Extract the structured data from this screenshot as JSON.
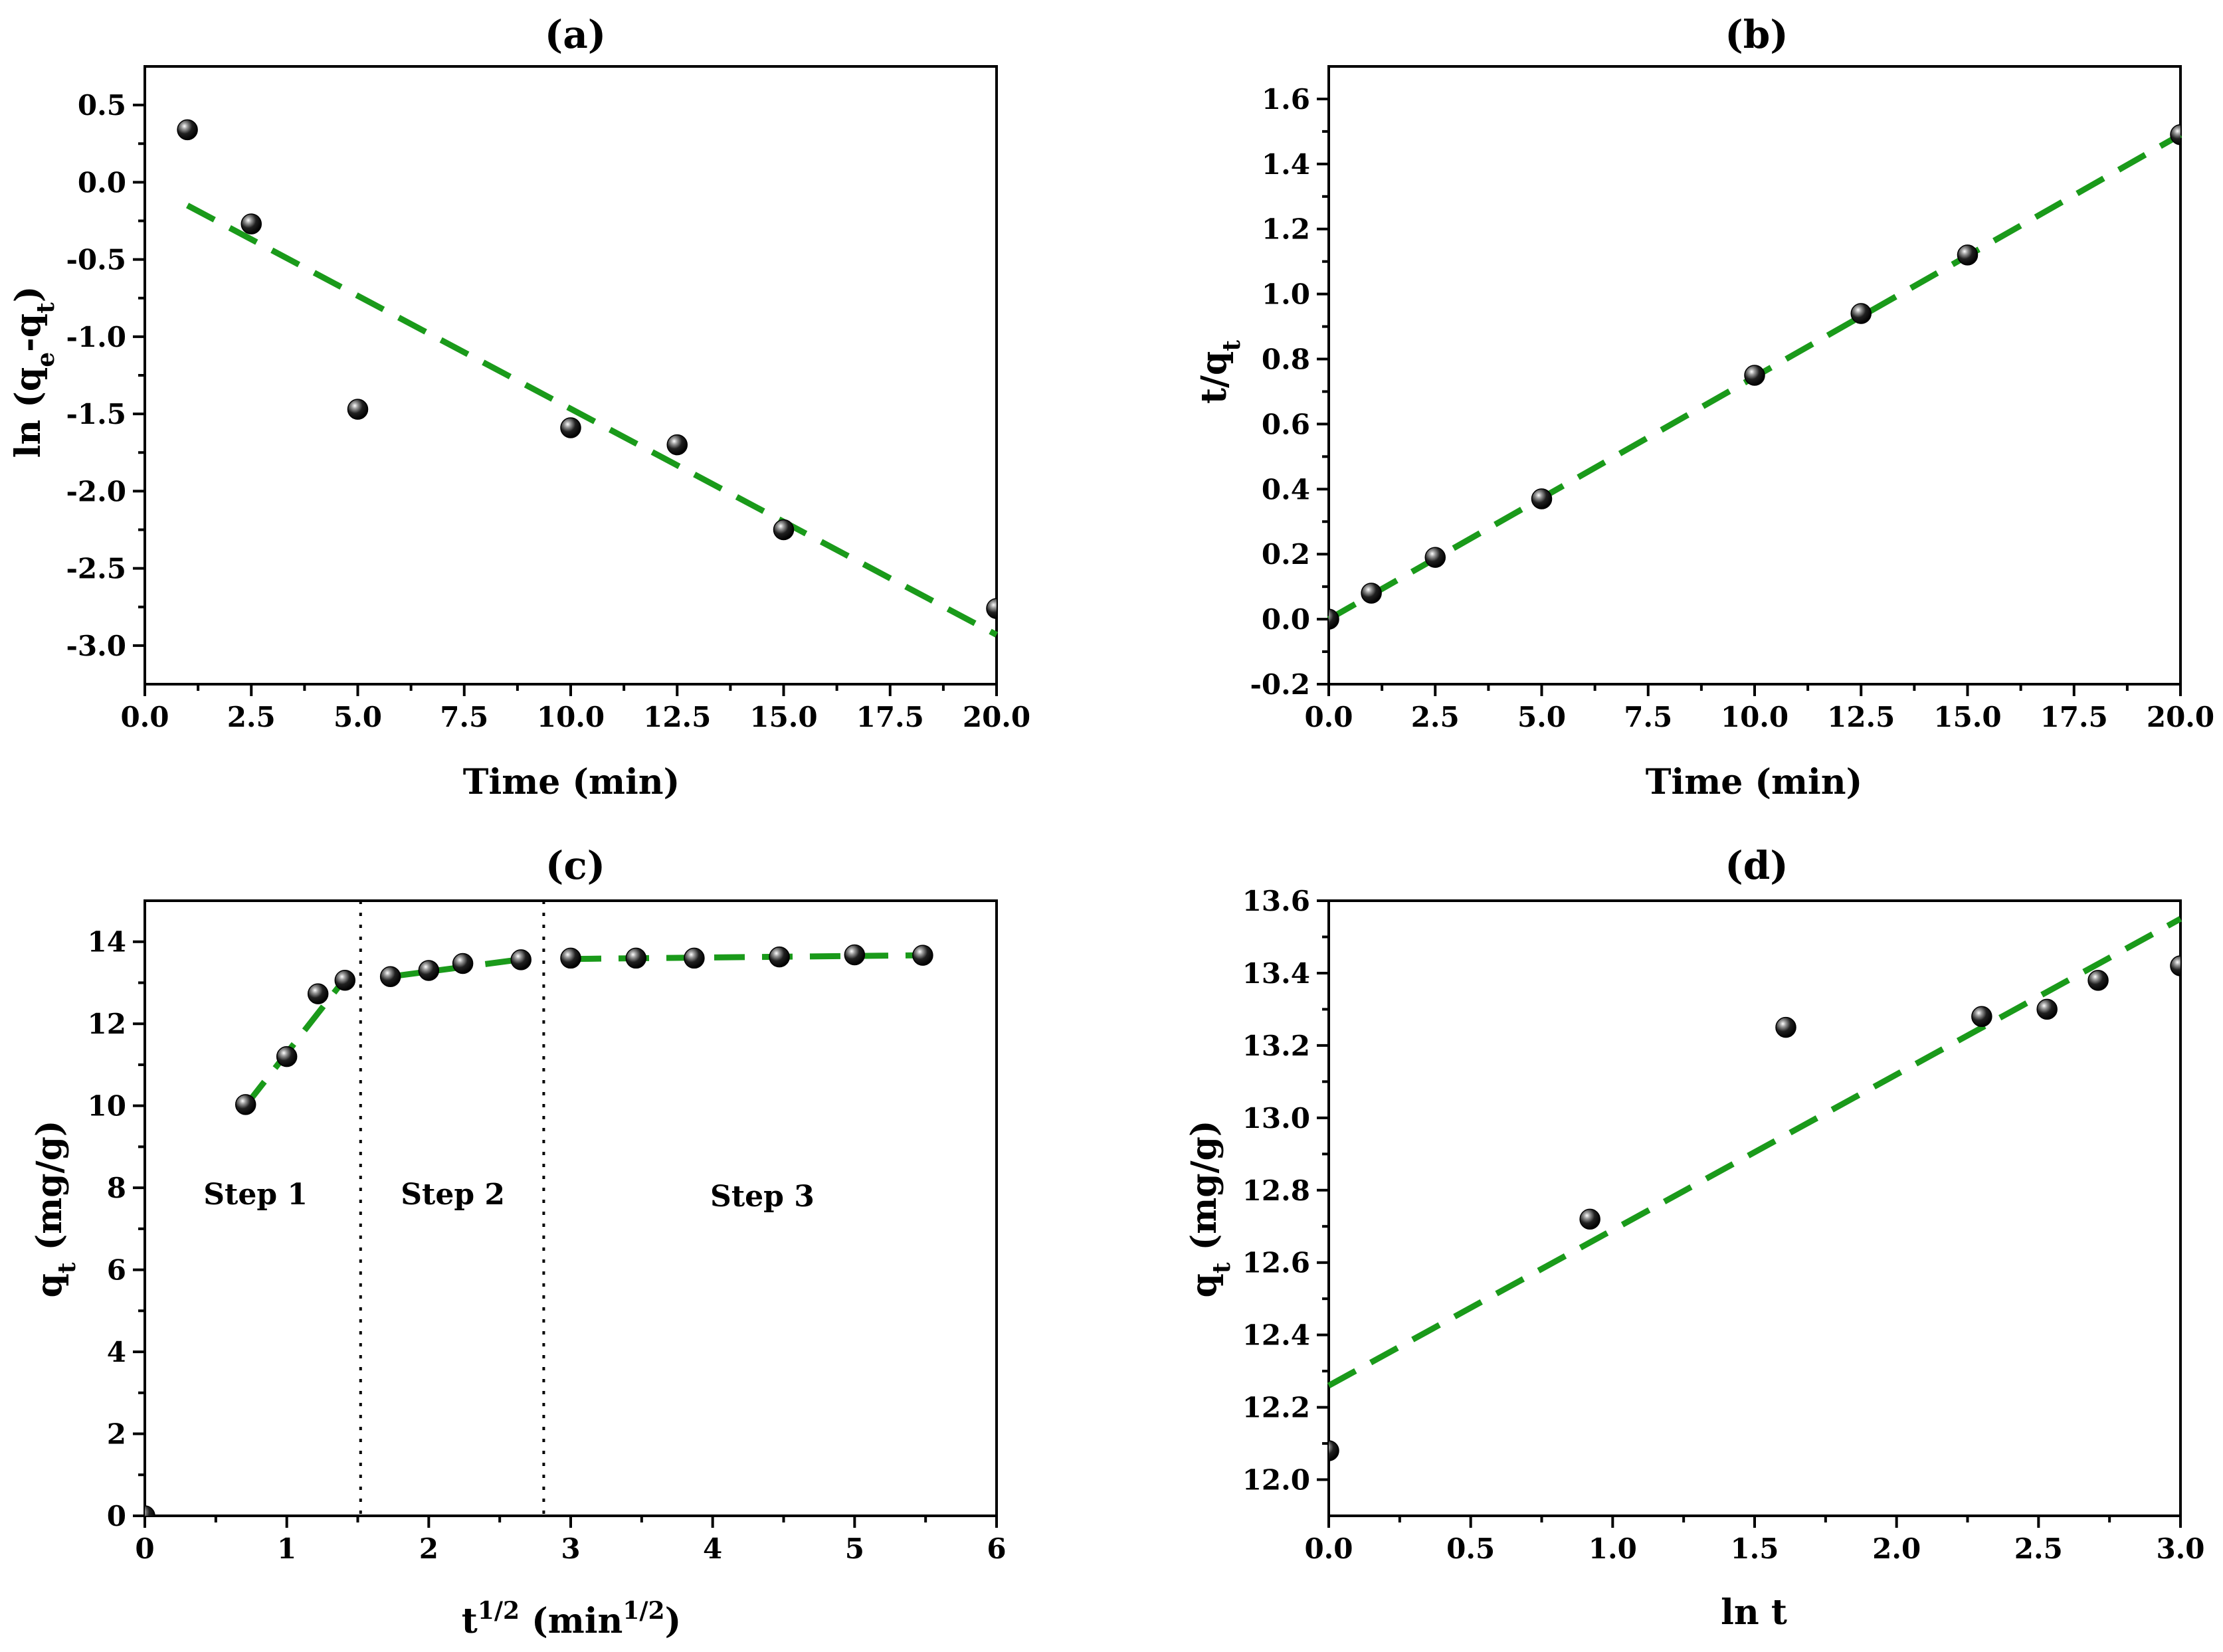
{
  "chart_data": [
    {
      "type": "scatter",
      "title": "(a)",
      "xlabel": "Time (min)",
      "ylabel": "ln (qe-qt)",
      "xlim": [
        0,
        20
      ],
      "ylim": [
        -3.25,
        0.75
      ],
      "xticks": [
        0,
        2.5,
        5,
        7.5,
        10,
        12.5,
        15,
        17.5,
        20
      ],
      "xtick_labels": [
        "0.0",
        "2.5",
        "5.0",
        "7.5",
        "10.0",
        "12.5",
        "15.0",
        "17.5",
        "20.0"
      ],
      "yticks": [
        -3.0,
        -2.5,
        -2.0,
        -1.5,
        -1.0,
        -0.5,
        0.0,
        0.5
      ],
      "ytick_labels": [
        "-3.0",
        "-2.5",
        "-2.0",
        "-1.5",
        "-1.0",
        "-0.5",
        "0.0",
        "0.5"
      ],
      "points": {
        "x": [
          1,
          2.5,
          5,
          10,
          12.5,
          15,
          20
        ],
        "y": [
          0.34,
          -0.27,
          -1.47,
          -1.59,
          -1.7,
          -2.25,
          -2.76
        ]
      },
      "fit_lines": [
        {
          "x": [
            1,
            20
          ],
          "y": [
            -0.15,
            -2.93
          ]
        }
      ]
    },
    {
      "type": "scatter",
      "title": "(b)",
      "xlabel": "Time (min)",
      "ylabel": "t/qt",
      "xlim": [
        0,
        20
      ],
      "ylim": [
        -0.2,
        1.7
      ],
      "xticks": [
        0,
        2.5,
        5,
        7.5,
        10,
        12.5,
        15,
        17.5,
        20
      ],
      "xtick_labels": [
        "0.0",
        "2.5",
        "5.0",
        "7.5",
        "10.0",
        "12.5",
        "15.0",
        "17.5",
        "20.0"
      ],
      "yticks": [
        -0.2,
        0.0,
        0.2,
        0.4,
        0.6,
        0.8,
        1.0,
        1.2,
        1.4,
        1.6
      ],
      "ytick_labels": [
        "-0.2",
        "0.0",
        "0.2",
        "0.4",
        "0.6",
        "0.8",
        "1.0",
        "1.2",
        "1.4",
        "1.6"
      ],
      "points": {
        "x": [
          0,
          1,
          2.5,
          5,
          10,
          12.5,
          15,
          20
        ],
        "y": [
          0.0,
          0.08,
          0.19,
          0.37,
          0.75,
          0.94,
          1.12,
          1.49
        ]
      },
      "fit_lines": [
        {
          "x": [
            0,
            20
          ],
          "y": [
            0.0,
            1.49
          ]
        }
      ]
    },
    {
      "type": "scatter",
      "title": "(c)",
      "xlabel": "t1/2 (min1/2)",
      "ylabel": "qt (mg/g)",
      "xlim": [
        0,
        6
      ],
      "ylim": [
        0,
        15
      ],
      "xticks": [
        0,
        1,
        2,
        3,
        4,
        5,
        6
      ],
      "xtick_labels": [
        "0",
        "1",
        "2",
        "3",
        "4",
        "5",
        "6"
      ],
      "yticks": [
        0,
        2,
        4,
        6,
        8,
        10,
        12,
        14
      ],
      "ytick_labels": [
        "0",
        "2",
        "4",
        "6",
        "8",
        "10",
        "12",
        "14"
      ],
      "points": {
        "x": [
          0,
          0.71,
          1.0,
          1.22,
          1.41,
          1.73,
          2.0,
          2.24,
          2.65,
          3.0,
          3.46,
          3.87,
          4.47,
          5.0,
          5.48
        ],
        "y": [
          0,
          10.03,
          11.2,
          12.73,
          13.06,
          13.15,
          13.3,
          13.47,
          13.56,
          13.6,
          13.6,
          13.6,
          13.63,
          13.68,
          13.67
        ]
      },
      "fit_lines": [
        {
          "x": [
            0.71,
            1.41
          ],
          "y": [
            10.0,
            13.1
          ]
        },
        {
          "x": [
            1.73,
            2.65
          ],
          "y": [
            13.15,
            13.57
          ]
        },
        {
          "x": [
            3.0,
            5.48
          ],
          "y": [
            13.58,
            13.67
          ]
        }
      ],
      "separators_x": [
        1.52,
        2.81
      ],
      "annotations": [
        {
          "text": "Step 1",
          "x": 0.78,
          "y": 7.6
        },
        {
          "text": "Step 2",
          "x": 2.17,
          "y": 7.6
        },
        {
          "text": "Step 3",
          "x": 4.35,
          "y": 7.55
        }
      ]
    },
    {
      "type": "scatter",
      "title": "(d)",
      "xlabel": "ln t",
      "ylabel": "qt (mg/g)",
      "xlim": [
        0,
        3
      ],
      "ylim": [
        11.9,
        13.6
      ],
      "xticks": [
        0,
        0.5,
        1.0,
        1.5,
        2.0,
        2.5,
        3.0
      ],
      "xtick_labels": [
        "0.0",
        "0.5",
        "1.0",
        "1.5",
        "2.0",
        "2.5",
        "3.0"
      ],
      "yticks": [
        12.0,
        12.2,
        12.4,
        12.6,
        12.8,
        13.0,
        13.2,
        13.4,
        13.6
      ],
      "ytick_labels": [
        "12.0",
        "12.2",
        "12.4",
        "12.6",
        "12.8",
        "13.0",
        "13.2",
        "13.4",
        "13.6"
      ],
      "points": {
        "x": [
          0,
          0.92,
          1.61,
          2.3,
          2.53,
          2.71,
          3.0
        ],
        "y": [
          12.08,
          12.72,
          13.25,
          13.28,
          13.3,
          13.38,
          13.42
        ]
      },
      "fit_lines": [
        {
          "x": [
            0,
            3
          ],
          "y": [
            12.26,
            13.55
          ]
        }
      ]
    }
  ]
}
